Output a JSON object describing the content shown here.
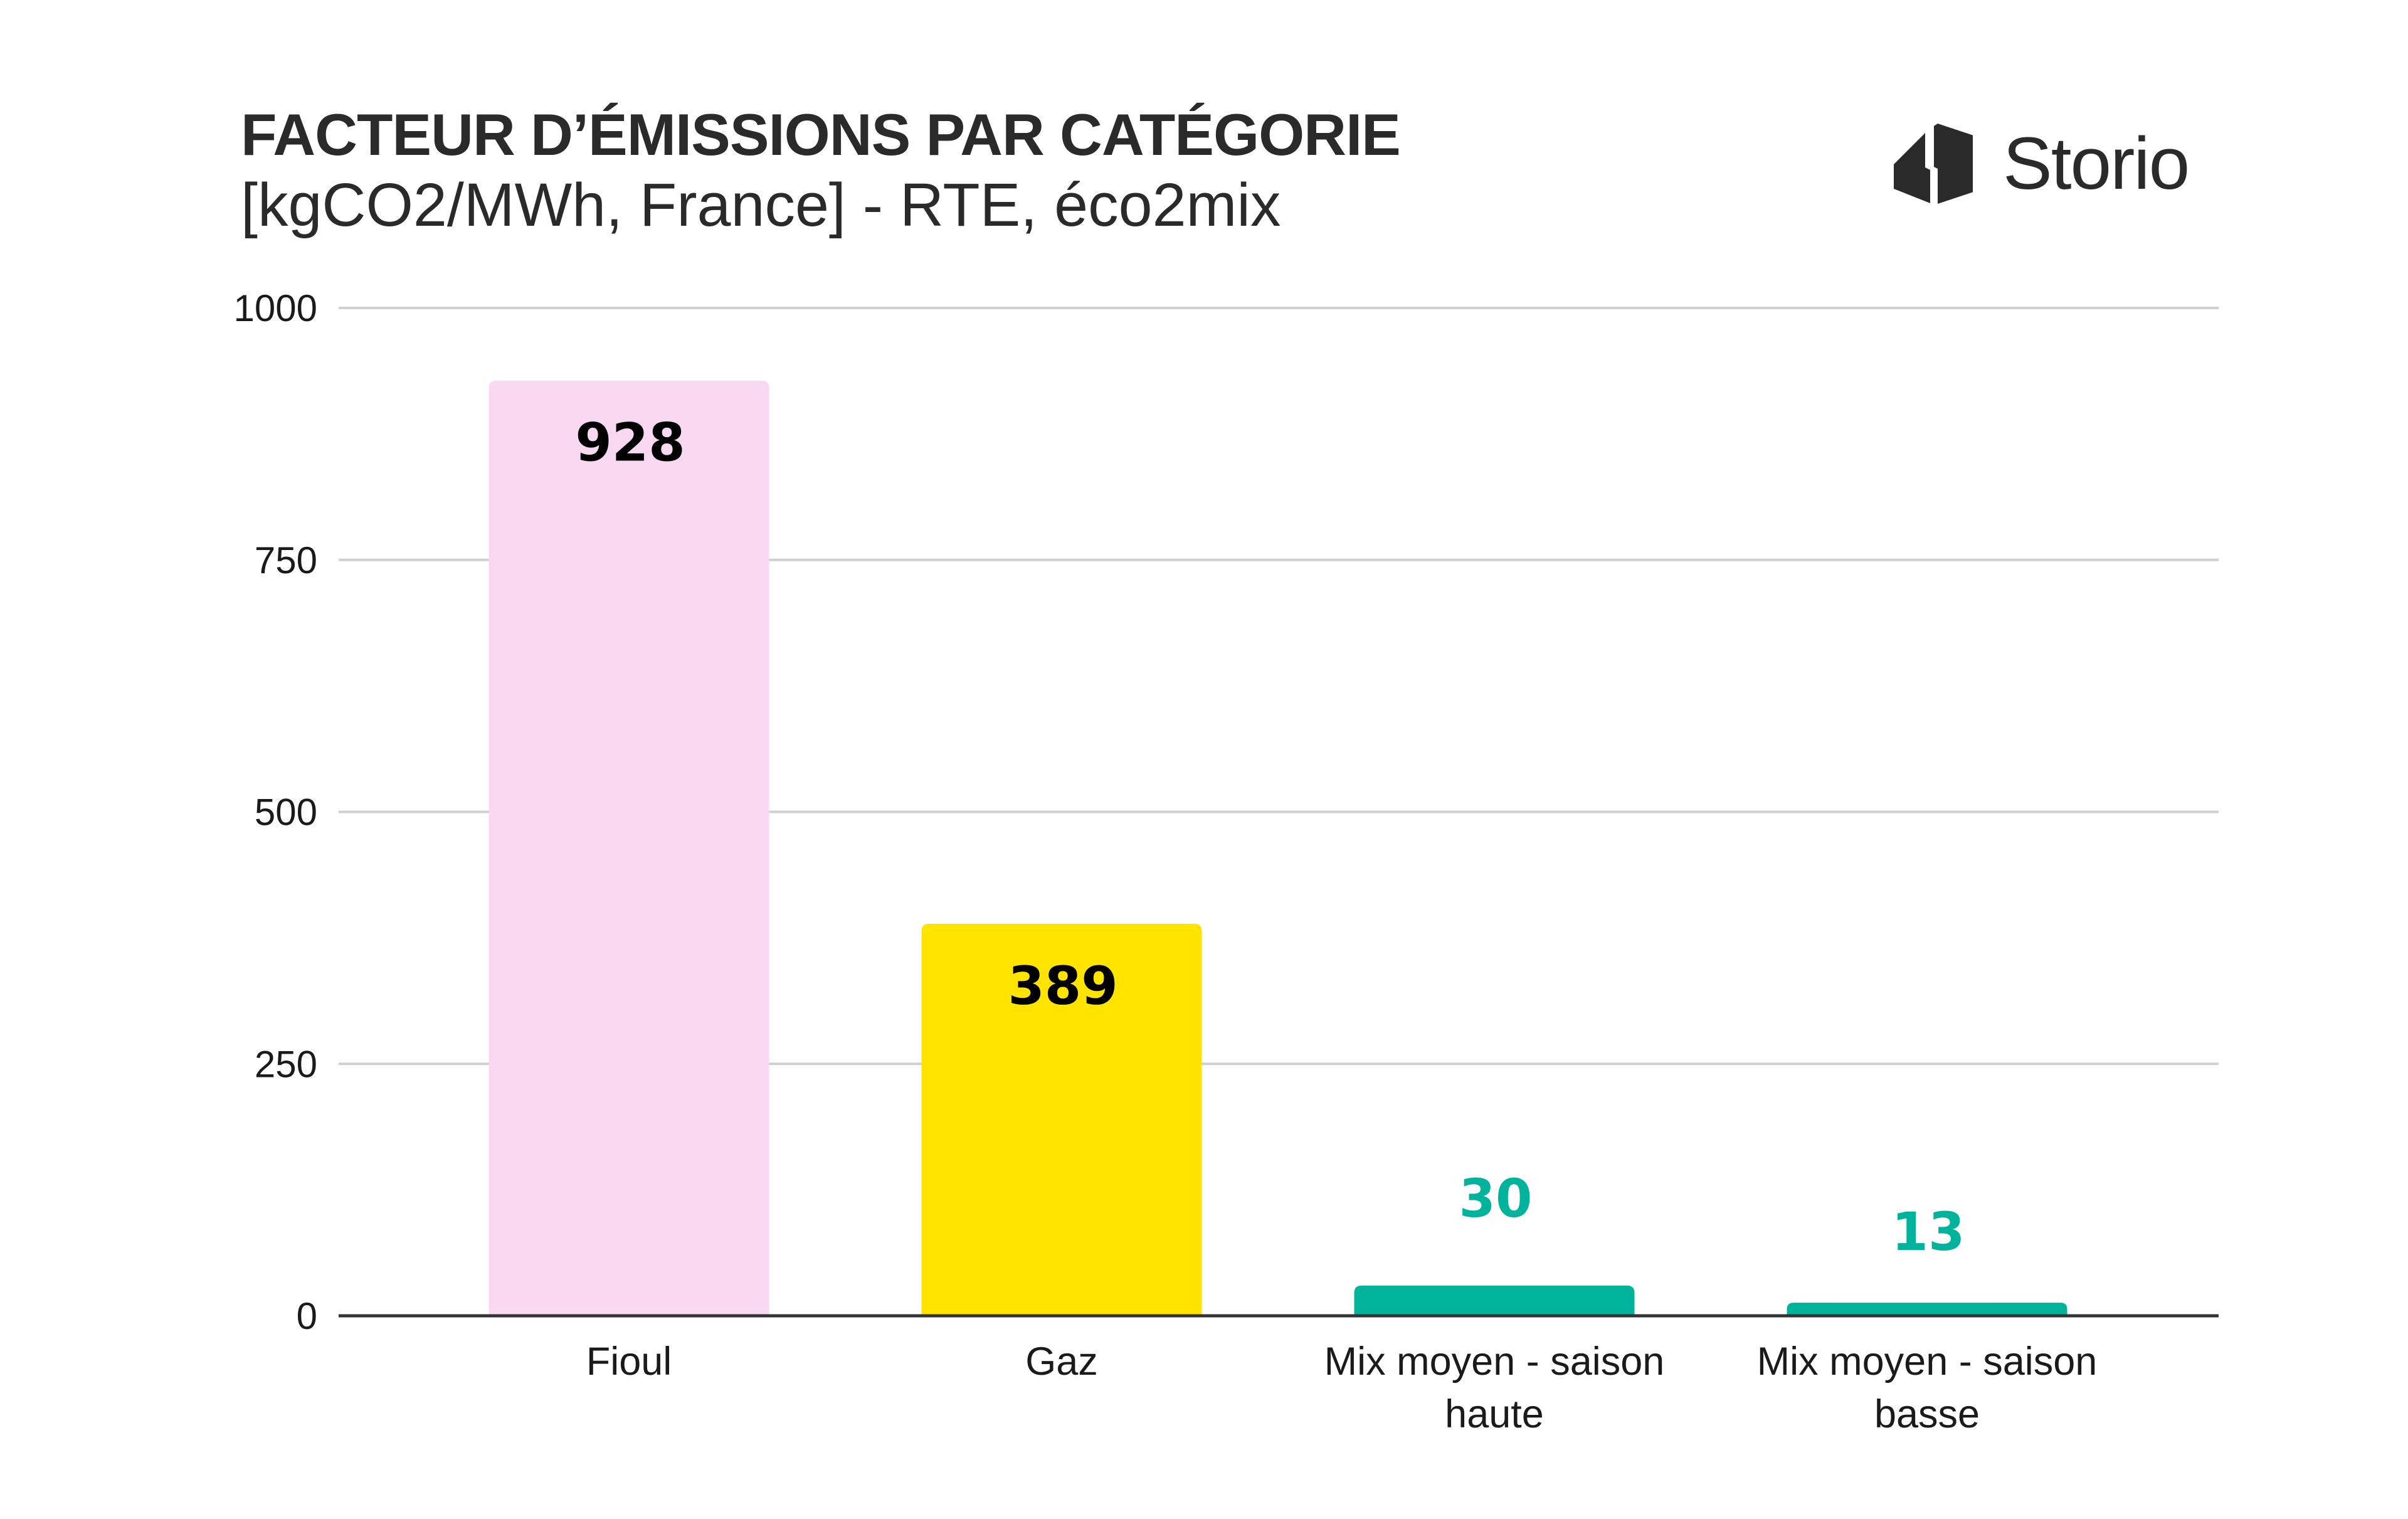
{
  "header": {
    "title": "FACTEUR D’ÉMISSIONS PAR CATÉGORIE",
    "subtitle": "[kgCO2/MWh, France] - RTE, éco2mix"
  },
  "logo": {
    "text": "Storio",
    "icon": "storio-building-icon",
    "color": "#2a2a2a"
  },
  "chart_data": {
    "type": "bar",
    "title": "FACTEUR D’ÉMISSIONS PAR CATÉGORIE",
    "subtitle": "[kgCO2/MWh, France] - RTE, éco2mix",
    "xlabel": "",
    "ylabel": "",
    "ylim": [
      0,
      1000
    ],
    "yticks": [
      0,
      250,
      500,
      750,
      1000
    ],
    "grid": true,
    "legend": "none",
    "categories": [
      [
        "Fioul"
      ],
      [
        "Gaz"
      ],
      [
        "Mix moyen - saison",
        "haute"
      ],
      [
        "Mix moyen - saison",
        "basse"
      ]
    ],
    "values": [
      928,
      389,
      30,
      13
    ],
    "data_labels": [
      "928",
      "389",
      "30",
      "13"
    ],
    "bar_colors": [
      "#F9D9F1",
      "#FFE400",
      "#02B39B",
      "#02B39B"
    ],
    "label_colors": [
      "#000000",
      "#000000",
      "#02B39B",
      "#02B39B"
    ],
    "label_position": [
      "inside",
      "inside",
      "above",
      "above"
    ],
    "colors": {
      "grid": "#d0d0d0",
      "axis": "#333333"
    }
  }
}
